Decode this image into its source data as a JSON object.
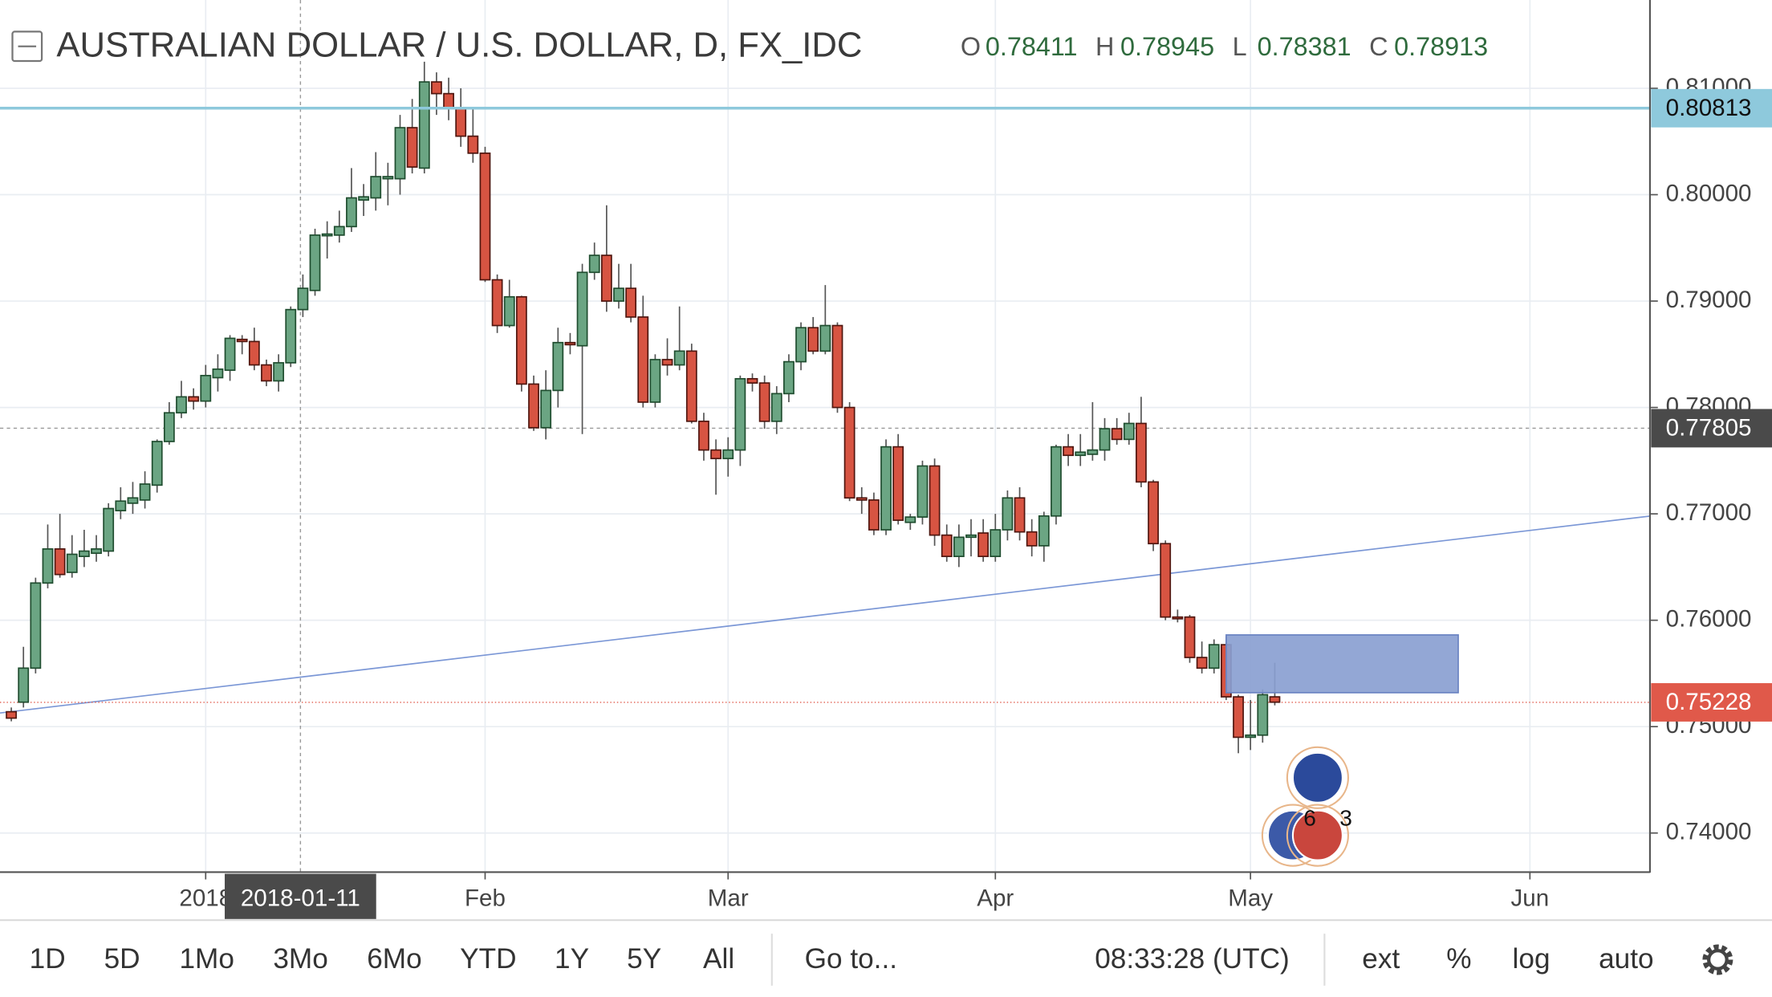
{
  "chart_data": {
    "type": "candlestick",
    "title": "AUSTRALIAN DOLLAR / U.S. DOLLAR, D, FX_IDC",
    "ohlc_legend": [
      {
        "label": "O",
        "value": 0.78411
      },
      {
        "label": "H",
        "value": 0.78945
      },
      {
        "label": "L",
        "value": 0.78381
      },
      {
        "label": "C",
        "value": 0.78913
      }
    ],
    "up_color": "#6ba583",
    "down_color": "#d75442",
    "open": [
      0.7514,
      0.7523,
      0.7555,
      0.7635,
      0.7667,
      0.7645,
      0.766,
      0.7663,
      0.7665,
      0.7703,
      0.771,
      0.7713,
      0.7727,
      0.7768,
      0.7795,
      0.781,
      0.7806,
      0.7828,
      0.7835,
      0.7864,
      0.7862,
      0.784,
      0.7825,
      0.7842,
      0.7892,
      0.791,
      0.7962,
      0.7962,
      0.797,
      0.7995,
      0.7997,
      0.8015,
      0.8015,
      0.8063,
      0.8025,
      0.8106,
      0.8095,
      0.8082,
      0.8055,
      0.8039,
      0.792,
      0.7877,
      0.7904,
      0.7822,
      0.7781,
      0.7816,
      0.7861,
      0.7858,
      0.7927,
      0.7943,
      0.79,
      0.7912,
      0.7885,
      0.7805,
      0.7845,
      0.784,
      0.7853,
      0.7787,
      0.776,
      0.7752,
      0.776,
      0.7827,
      0.7823,
      0.7787,
      0.7813,
      0.7843,
      0.7875,
      0.7853,
      0.7877,
      0.78,
      0.7715,
      0.7713,
      0.7685,
      0.7763,
      0.7692,
      0.7697,
      0.7745,
      0.768,
      0.766,
      0.7678,
      0.7682,
      0.766,
      0.7685,
      0.7715,
      0.7683,
      0.767,
      0.7698,
      0.7763,
      0.7755,
      0.7756,
      0.776,
      0.778,
      0.777,
      0.7785,
      0.773,
      0.7672,
      0.7603,
      0.7603,
      0.7565,
      0.7555,
      0.7577,
      0.7528,
      0.749,
      0.7492,
      0.7528
    ],
    "high": [
      0.7518,
      0.7575,
      0.764,
      0.769,
      0.77,
      0.768,
      0.7685,
      0.768,
      0.771,
      0.7725,
      0.773,
      0.774,
      0.777,
      0.7805,
      0.7825,
      0.7818,
      0.784,
      0.785,
      0.7868,
      0.7868,
      0.7875,
      0.7845,
      0.785,
      0.7895,
      0.7925,
      0.7968,
      0.7975,
      0.7985,
      0.8025,
      0.801,
      0.804,
      0.803,
      0.8075,
      0.809,
      0.8125,
      0.8115,
      0.811,
      0.81,
      0.808,
      0.8045,
      0.7925,
      0.792,
      0.7905,
      0.783,
      0.7835,
      0.7875,
      0.787,
      0.7935,
      0.7955,
      0.799,
      0.7935,
      0.7935,
      0.7905,
      0.785,
      0.7865,
      0.7895,
      0.786,
      0.7795,
      0.777,
      0.7772,
      0.783,
      0.7832,
      0.783,
      0.782,
      0.785,
      0.788,
      0.7885,
      0.7915,
      0.788,
      0.7805,
      0.7725,
      0.772,
      0.777,
      0.7775,
      0.77,
      0.775,
      0.7752,
      0.769,
      0.769,
      0.7695,
      0.7695,
      0.77,
      0.7722,
      0.7725,
      0.7695,
      0.7702,
      0.7765,
      0.7775,
      0.7775,
      0.7805,
      0.779,
      0.779,
      0.7795,
      0.781,
      0.7732,
      0.7675,
      0.761,
      0.7605,
      0.758,
      0.7582,
      0.7585,
      0.753,
      0.7525,
      0.7535,
      0.756
    ],
    "low": [
      0.7505,
      0.7518,
      0.755,
      0.763,
      0.764,
      0.764,
      0.765,
      0.7655,
      0.766,
      0.7695,
      0.77,
      0.7705,
      0.772,
      0.7765,
      0.779,
      0.7798,
      0.78,
      0.7815,
      0.7825,
      0.785,
      0.7835,
      0.782,
      0.7815,
      0.7838,
      0.7885,
      0.7905,
      0.794,
      0.7955,
      0.7965,
      0.798,
      0.7985,
      0.799,
      0.8,
      0.802,
      0.802,
      0.8075,
      0.807,
      0.8045,
      0.803,
      0.7918,
      0.787,
      0.7875,
      0.7815,
      0.7778,
      0.777,
      0.78,
      0.785,
      0.7775,
      0.792,
      0.789,
      0.7893,
      0.788,
      0.78,
      0.78,
      0.783,
      0.7835,
      0.7785,
      0.775,
      0.7718,
      0.7735,
      0.7745,
      0.7815,
      0.778,
      0.7775,
      0.7805,
      0.7835,
      0.785,
      0.785,
      0.7795,
      0.7712,
      0.77,
      0.768,
      0.768,
      0.769,
      0.7685,
      0.769,
      0.767,
      0.7655,
      0.765,
      0.766,
      0.7655,
      0.7655,
      0.7675,
      0.7675,
      0.766,
      0.7655,
      0.769,
      0.7745,
      0.7745,
      0.775,
      0.775,
      0.7765,
      0.7765,
      0.7725,
      0.7665,
      0.76,
      0.7598,
      0.756,
      0.755,
      0.755,
      0.7525,
      0.7475,
      0.7478,
      0.7485,
      0.752
    ],
    "close": [
      0.7508,
      0.7555,
      0.7635,
      0.7667,
      0.7643,
      0.7662,
      0.7665,
      0.7667,
      0.7705,
      0.7712,
      0.7715,
      0.7728,
      0.7768,
      0.7795,
      0.781,
      0.7806,
      0.783,
      0.7836,
      0.7865,
      0.7862,
      0.784,
      0.7825,
      0.7842,
      0.7892,
      0.7912,
      0.7962,
      0.7963,
      0.797,
      0.7997,
      0.7998,
      0.8017,
      0.8017,
      0.8063,
      0.8026,
      0.8106,
      0.8095,
      0.8082,
      0.8055,
      0.8039,
      0.792,
      0.7877,
      0.7904,
      0.7822,
      0.7781,
      0.7816,
      0.7861,
      0.7859,
      0.7927,
      0.7943,
      0.79,
      0.7912,
      0.7885,
      0.7805,
      0.7845,
      0.784,
      0.7853,
      0.7787,
      0.776,
      0.7752,
      0.776,
      0.7827,
      0.7823,
      0.7787,
      0.7813,
      0.7843,
      0.7875,
      0.7853,
      0.7877,
      0.78,
      0.7715,
      0.7713,
      0.7685,
      0.7763,
      0.7694,
      0.7697,
      0.7745,
      0.768,
      0.766,
      0.7678,
      0.768,
      0.766,
      0.7685,
      0.7715,
      0.7683,
      0.767,
      0.7698,
      0.7763,
      0.7755,
      0.7758,
      0.776,
      0.778,
      0.777,
      0.7785,
      0.773,
      0.7672,
      0.7603,
      0.7602,
      0.7565,
      0.7555,
      0.7577,
      0.7528,
      0.749,
      0.7492,
      0.753,
      0.7523
    ],
    "xlim": [
      -0.93,
      134.88
    ],
    "ylim": [
      0.73638,
      0.8183
    ],
    "xticks": [
      {
        "value": 16,
        "label": "2018"
      },
      {
        "value": 39,
        "label": "Feb"
      },
      {
        "value": 59,
        "label": "Mar"
      },
      {
        "value": 81,
        "label": "Apr"
      },
      {
        "value": 102,
        "label": "May"
      },
      {
        "value": 125,
        "label": "Jun"
      }
    ],
    "yticks": [
      {
        "value": 0.74,
        "label": "0.74000"
      },
      {
        "value": 0.75,
        "label": "0.75000"
      },
      {
        "value": 0.76,
        "label": "0.76000"
      },
      {
        "value": 0.77,
        "label": "0.77000"
      },
      {
        "value": 0.78,
        "label": "0.78000"
      },
      {
        "value": 0.79,
        "label": "0.79000"
      },
      {
        "value": 0.8,
        "label": "0.80000"
      },
      {
        "value": 0.81,
        "label": "0.81000"
      }
    ],
    "grid": true,
    "level_line": {
      "price": 0.80813,
      "color": "#8ec9dc"
    },
    "crosshair": {
      "price": 0.77805,
      "index": 23.8,
      "date": "2018-01-11"
    },
    "last_price": {
      "price": 0.75228,
      "color": "#e0594a"
    },
    "trend_line": {
      "x": [
        -0.93,
        134.88
      ],
      "y": [
        0.75128,
        0.76979
      ],
      "color": "#7b97d6"
    },
    "zone": {
      "x": [
        100,
        119.1
      ],
      "y": [
        0.75319,
        0.75862
      ],
      "color": "#8a9fd1"
    },
    "event_labels": [
      "6",
      "3"
    ]
  },
  "toolbar": {
    "ranges": [
      "1D",
      "5D",
      "1Mo",
      "3Mo",
      "6Mo",
      "YTD",
      "1Y",
      "5Y",
      "All"
    ],
    "goto": "Go to...",
    "clock": "08:33:28 (UTC)",
    "options": [
      "ext",
      "%",
      "log",
      "auto"
    ]
  }
}
